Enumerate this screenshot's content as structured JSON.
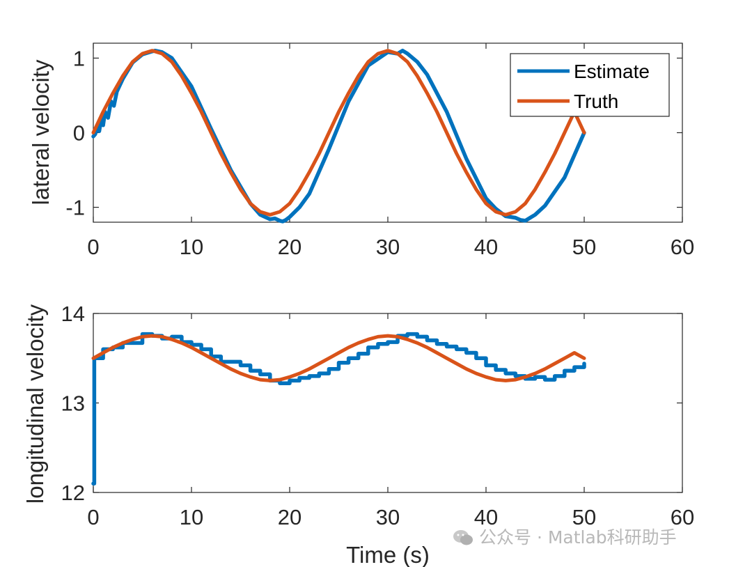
{
  "chart_data": [
    {
      "type": "line",
      "ylabel": "lateral velocity",
      "xlabel": "",
      "xlim": [
        0,
        60
      ],
      "ylim": [
        -1.2,
        1.2
      ],
      "xticks": [
        0,
        10,
        20,
        30,
        40,
        50,
        60
      ],
      "xtick_labels": [
        "0",
        "10",
        "20",
        "30",
        "40",
        "50",
        "60"
      ],
      "yticks": [
        -1,
        0,
        1
      ],
      "ytick_labels": [
        "-1",
        "0",
        "1"
      ],
      "legend": {
        "position": "top-right",
        "entries": [
          "Estimate",
          "Truth"
        ]
      },
      "series": [
        {
          "name": "Estimate",
          "color": "#0072BD",
          "x": [
            0,
            0.2,
            0.4,
            0.6,
            0.8,
            1.0,
            1.2,
            1.5,
            1.8,
            2.1,
            2.4,
            3,
            4,
            5,
            6,
            6.3,
            7,
            8,
            10,
            12,
            14,
            16,
            17,
            18,
            18.5,
            19,
            19.3,
            19.6,
            20,
            21,
            22,
            24,
            26,
            28,
            30,
            31,
            31.5,
            32,
            33,
            34,
            36,
            38,
            40,
            41,
            42,
            43,
            43.5,
            44,
            45,
            46,
            48,
            50
          ],
          "y": [
            -0.05,
            -0.02,
            0.08,
            0.02,
            0.18,
            0.1,
            0.28,
            0.2,
            0.42,
            0.36,
            0.55,
            0.72,
            0.94,
            1.05,
            1.09,
            1.1,
            1.08,
            1.0,
            0.62,
            0.05,
            -0.5,
            -0.95,
            -1.1,
            -1.16,
            -1.15,
            -1.18,
            -1.19,
            -1.17,
            -1.13,
            -1.0,
            -0.82,
            -0.22,
            0.42,
            0.9,
            1.08,
            1.06,
            1.1,
            1.06,
            0.95,
            0.78,
            0.28,
            -0.35,
            -0.88,
            -1.02,
            -1.12,
            -1.14,
            -1.17,
            -1.18,
            -1.1,
            -0.98,
            -0.6,
            0.0
          ]
        },
        {
          "name": "Truth",
          "color": "#D95319",
          "x": [
            0,
            1,
            2,
            3,
            4,
            5,
            6,
            7,
            8,
            9,
            10,
            11,
            12,
            13,
            14,
            15,
            16,
            17,
            18,
            19,
            20,
            21,
            22,
            23,
            24,
            25,
            26,
            27,
            28,
            29,
            30,
            31,
            32,
            33,
            34,
            35,
            36,
            37,
            38,
            39,
            40,
            41,
            42,
            43,
            44,
            45,
            46,
            47,
            48,
            49,
            50
          ],
          "y": [
            0.0,
            0.28,
            0.53,
            0.76,
            0.95,
            1.06,
            1.1,
            1.06,
            0.95,
            0.76,
            0.53,
            0.28,
            0.0,
            -0.28,
            -0.53,
            -0.76,
            -0.95,
            -1.06,
            -1.1,
            -1.06,
            -0.95,
            -0.76,
            -0.53,
            -0.28,
            0.0,
            0.28,
            0.53,
            0.76,
            0.95,
            1.06,
            1.1,
            1.06,
            0.95,
            0.76,
            0.53,
            0.28,
            0.0,
            -0.28,
            -0.53,
            -0.76,
            -0.95,
            -1.06,
            -1.1,
            -1.06,
            -0.95,
            -0.76,
            -0.53,
            -0.28,
            0.0,
            0.28,
            0.0
          ]
        }
      ]
    },
    {
      "type": "line",
      "ylabel": "longitudinal velocity",
      "xlabel": "Time (s)",
      "xlim": [
        0,
        60
      ],
      "ylim": [
        12,
        14
      ],
      "xticks": [
        0,
        10,
        20,
        30,
        40,
        50,
        60
      ],
      "xtick_labels": [
        "0",
        "10",
        "20",
        "30",
        "40",
        "50",
        "60"
      ],
      "yticks": [
        12,
        13,
        14
      ],
      "ytick_labels": [
        "12",
        "13",
        "14"
      ],
      "series": [
        {
          "name": "Estimate",
          "color": "#0072BD",
          "step": true,
          "x": [
            0,
            0.1,
            0.2,
            1,
            2,
            3,
            5,
            6,
            7,
            8,
            9,
            10,
            11,
            12,
            13,
            14,
            15,
            16,
            17,
            18,
            19,
            20,
            21,
            22,
            23,
            24,
            25,
            26,
            27,
            28,
            29,
            30,
            31,
            32,
            33,
            34,
            35,
            36,
            37,
            38,
            39,
            40,
            41,
            42,
            43,
            44,
            45,
            46,
            47,
            48,
            49,
            50
          ],
          "y": [
            12.1,
            13.5,
            13.5,
            13.6,
            13.62,
            13.67,
            13.77,
            13.75,
            13.72,
            13.74,
            13.68,
            13.65,
            13.6,
            13.52,
            13.46,
            13.46,
            13.42,
            13.36,
            13.32,
            13.25,
            13.22,
            13.25,
            13.28,
            13.3,
            13.33,
            13.38,
            13.45,
            13.5,
            13.55,
            13.62,
            13.66,
            13.68,
            13.75,
            13.77,
            13.74,
            13.7,
            13.66,
            13.63,
            13.6,
            13.56,
            13.5,
            13.42,
            13.37,
            13.33,
            13.3,
            13.27,
            13.29,
            13.26,
            13.3,
            13.36,
            13.4,
            13.44
          ]
        },
        {
          "name": "Truth",
          "color": "#D95319",
          "x": [
            0,
            1,
            2,
            3,
            4,
            5,
            6,
            7,
            8,
            9,
            10,
            11,
            12,
            13,
            14,
            15,
            16,
            17,
            18,
            19,
            20,
            21,
            22,
            23,
            24,
            25,
            26,
            27,
            28,
            29,
            30,
            31,
            32,
            33,
            34,
            35,
            36,
            37,
            38,
            39,
            40,
            41,
            42,
            43,
            44,
            45,
            46,
            47,
            48,
            49,
            50
          ],
          "y": [
            13.5,
            13.56,
            13.62,
            13.67,
            13.71,
            13.74,
            13.75,
            13.74,
            13.71,
            13.67,
            13.62,
            13.56,
            13.5,
            13.44,
            13.38,
            13.33,
            13.29,
            13.26,
            13.25,
            13.26,
            13.29,
            13.33,
            13.38,
            13.44,
            13.5,
            13.56,
            13.62,
            13.67,
            13.71,
            13.74,
            13.75,
            13.74,
            13.71,
            13.67,
            13.62,
            13.56,
            13.5,
            13.44,
            13.38,
            13.33,
            13.29,
            13.26,
            13.25,
            13.26,
            13.29,
            13.33,
            13.38,
            13.44,
            13.5,
            13.56,
            13.5
          ]
        }
      ]
    }
  ],
  "watermark": "公众号 · Matlab科研助手"
}
